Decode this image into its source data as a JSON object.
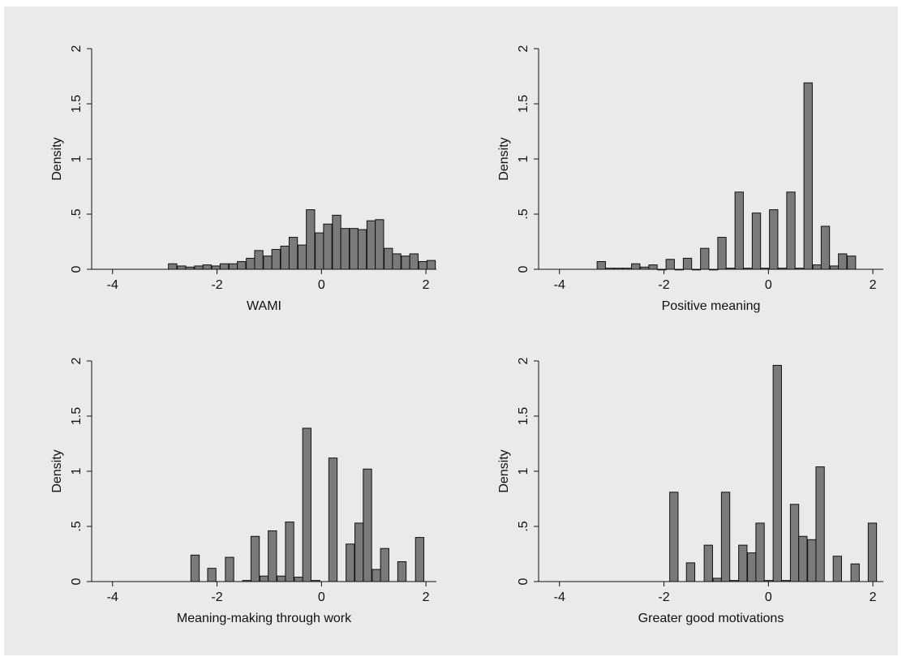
{
  "colors": {
    "background": "#eaeaea",
    "bar_fill": "#7a7a7a",
    "bar_stroke": "#111111"
  },
  "chart_data": [
    {
      "type": "bar",
      "xlabel": "WAMI",
      "ylabel": "Density",
      "xlim": [
        -4.4,
        2.2
      ],
      "ylim": [
        0,
        2
      ],
      "xticks": [
        -4,
        -2,
        0,
        2
      ],
      "xtick_labels": [
        "-4",
        "-2",
        "0",
        "2"
      ],
      "yticks": [
        0,
        0.5,
        1,
        1.5,
        2
      ],
      "ytick_labels": [
        "0",
        ".5",
        "1",
        "1.5",
        "2"
      ],
      "bar_width": 0.16,
      "x": [
        -2.85,
        -2.68,
        -2.52,
        -2.35,
        -2.19,
        -2.02,
        -1.86,
        -1.69,
        -1.53,
        -1.36,
        -1.2,
        -1.03,
        -0.87,
        -0.7,
        -0.54,
        -0.37,
        -0.21,
        -0.04,
        0.12,
        0.29,
        0.45,
        0.62,
        0.78,
        0.95,
        1.11,
        1.28,
        1.44,
        1.61,
        1.77,
        1.94,
        2.1
      ],
      "values": [
        0.05,
        0.03,
        0.02,
        0.03,
        0.04,
        0.03,
        0.05,
        0.05,
        0.07,
        0.1,
        0.17,
        0.12,
        0.18,
        0.21,
        0.29,
        0.22,
        0.54,
        0.33,
        0.41,
        0.49,
        0.37,
        0.37,
        0.36,
        0.44,
        0.45,
        0.19,
        0.14,
        0.12,
        0.14,
        0.07,
        0.08
      ]
    },
    {
      "type": "bar",
      "xlabel": "Positive meaning",
      "ylabel": "Density",
      "xlim": [
        -4.4,
        2.2
      ],
      "ylim": [
        0,
        2
      ],
      "xticks": [
        -4,
        -2,
        0,
        2
      ],
      "xtick_labels": [
        "-4",
        "-2",
        "0",
        "2"
      ],
      "yticks": [
        0,
        0.5,
        1,
        1.5,
        2
      ],
      "ytick_labels": [
        "0",
        ".5",
        "1",
        "1.5",
        "2"
      ],
      "bar_width": 0.16,
      "x": [
        -3.2,
        -3.03,
        -2.87,
        -2.7,
        -2.54,
        -2.37,
        -2.21,
        -2.04,
        -1.88,
        -1.71,
        -1.55,
        -1.38,
        -1.22,
        -1.05,
        -0.89,
        -0.72,
        -0.56,
        -0.39,
        -0.23,
        -0.06,
        0.1,
        0.27,
        0.43,
        0.6,
        0.76,
        0.93,
        1.09,
        1.26,
        1.42,
        1.59
      ],
      "values": [
        0.07,
        0.01,
        0.01,
        0.01,
        0.05,
        0.02,
        0.04,
        0.0,
        0.09,
        0.0,
        0.1,
        0.0,
        0.19,
        0.0,
        0.29,
        0.01,
        0.7,
        0.01,
        0.51,
        0.01,
        0.54,
        0.01,
        0.7,
        0.01,
        1.69,
        0.04,
        0.39,
        0.03,
        0.14,
        0.12
      ]
    },
    {
      "type": "bar",
      "xlabel": "Meaning-making through work",
      "ylabel": "Density",
      "xlim": [
        -4.4,
        2.2
      ],
      "ylim": [
        0,
        2
      ],
      "xticks": [
        -4,
        -2,
        0,
        2
      ],
      "xtick_labels": [
        "-4",
        "-2",
        "0",
        "2"
      ],
      "yticks": [
        0,
        0.5,
        1,
        1.5,
        2
      ],
      "ytick_labels": [
        "0",
        ".5",
        "1",
        "1.5",
        "2"
      ],
      "bar_width": 0.16,
      "x": [
        -2.42,
        -2.1,
        -1.76,
        -1.43,
        -1.27,
        -1.1,
        -0.94,
        -0.77,
        -0.61,
        -0.44,
        -0.28,
        -0.11,
        0.22,
        0.55,
        0.72,
        0.88,
        1.05,
        1.21,
        1.54,
        1.88
      ],
      "values": [
        0.24,
        0.12,
        0.22,
        0.01,
        0.41,
        0.05,
        0.46,
        0.05,
        0.54,
        0.04,
        1.39,
        0.01,
        1.12,
        0.34,
        0.53,
        1.02,
        0.11,
        0.3,
        0.18,
        0.4
      ]
    },
    {
      "type": "bar",
      "xlabel": "Greater good motivations",
      "ylabel": "Density",
      "xlim": [
        -4.4,
        2.2
      ],
      "ylim": [
        0,
        2
      ],
      "xticks": [
        -4,
        -2,
        0,
        2
      ],
      "xtick_labels": [
        "-4",
        "-2",
        "0",
        "2"
      ],
      "yticks": [
        0,
        0.5,
        1,
        1.5,
        2
      ],
      "ytick_labels": [
        "0",
        ".5",
        "1",
        "1.5",
        "2"
      ],
      "bar_width": 0.16,
      "x": [
        -1.81,
        -1.49,
        -1.15,
        -0.98,
        -0.82,
        -0.65,
        -0.49,
        -0.32,
        -0.16,
        0.0,
        0.17,
        0.33,
        0.5,
        0.66,
        0.83,
        0.99,
        1.32,
        1.66,
        1.99
      ],
      "values": [
        0.81,
        0.17,
        0.33,
        0.03,
        0.81,
        0.01,
        0.33,
        0.26,
        0.53,
        0.01,
        1.96,
        0.01,
        0.7,
        0.41,
        0.38,
        1.04,
        0.23,
        0.16,
        0.53
      ]
    }
  ]
}
